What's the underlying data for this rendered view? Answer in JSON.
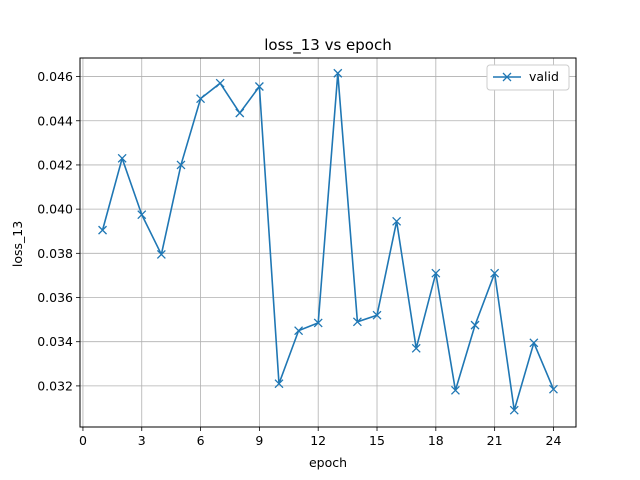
{
  "chart_data": {
    "type": "line",
    "title": "loss_13 vs epoch",
    "xlabel": "epoch",
    "ylabel": "loss_13",
    "xlim": [
      -0.15,
      25.15
    ],
    "ylim": [
      0.03014,
      0.04684
    ],
    "xticks": [
      0,
      3,
      6,
      9,
      12,
      15,
      18,
      21,
      24
    ],
    "yticks": [
      0.032,
      0.034,
      0.036,
      0.038,
      0.04,
      0.042,
      0.044,
      0.046
    ],
    "ytick_labels": [
      "0.032",
      "0.034",
      "0.036",
      "0.038",
      "0.040",
      "0.042",
      "0.044",
      "0.046"
    ],
    "grid": true,
    "legend_position": "top-right",
    "series": [
      {
        "name": "valid",
        "color": "#1f77b4",
        "marker": "x",
        "x": [
          1,
          2,
          3,
          4,
          5,
          6,
          7,
          8,
          9,
          10,
          11,
          12,
          13,
          14,
          15,
          16,
          17,
          18,
          19,
          20,
          21,
          22,
          23,
          24
        ],
        "values": [
          0.03905,
          0.0423,
          0.03975,
          0.03795,
          0.042,
          0.045,
          0.0457,
          0.04435,
          0.04555,
          0.0321,
          0.0345,
          0.03485,
          0.04615,
          0.0349,
          0.0352,
          0.03945,
          0.0337,
          0.0371,
          0.0318,
          0.03475,
          0.0371,
          0.0309,
          0.03395,
          0.03185
        ]
      }
    ]
  }
}
